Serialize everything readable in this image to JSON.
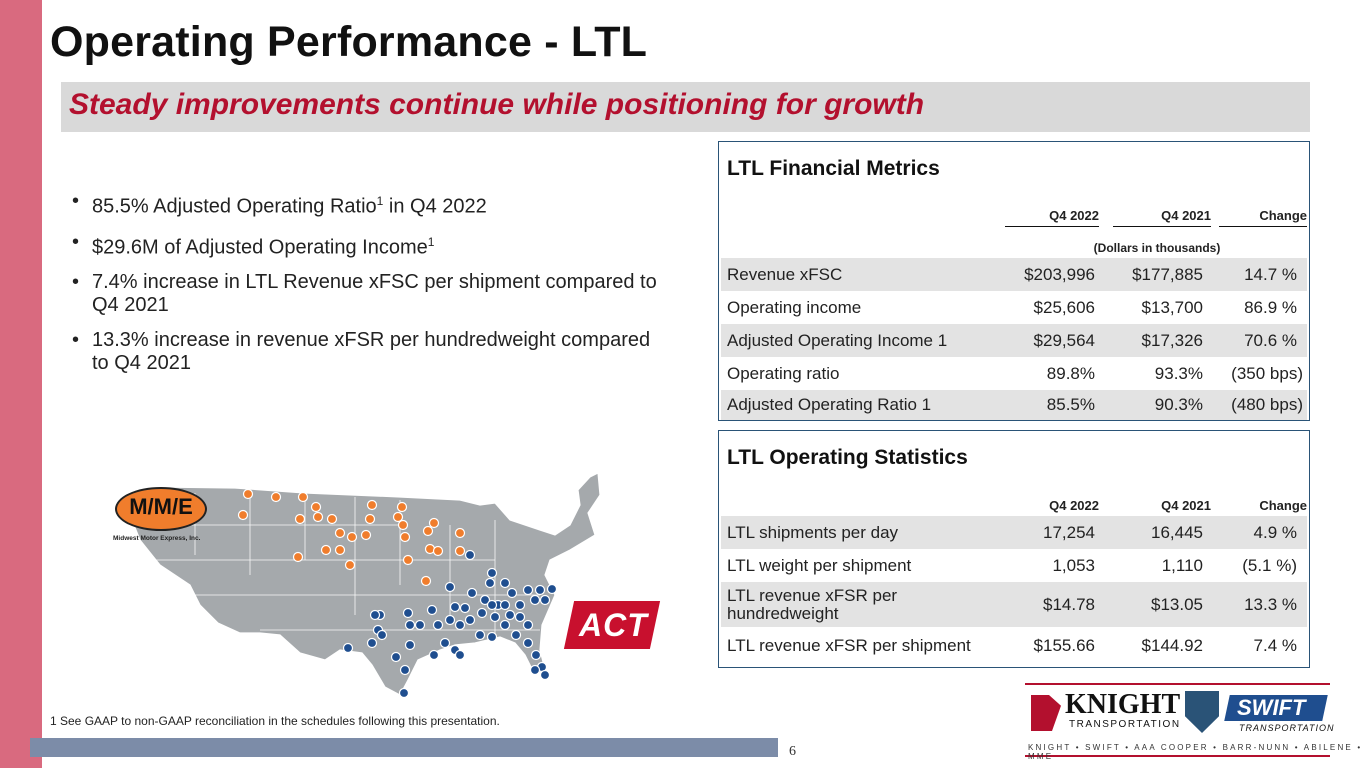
{
  "title": "Operating Performance - LTL",
  "subtitle": "Steady improvements continue while positioning for growth",
  "bullets": [
    {
      "text": "85.5% Adjusted Operating Ratio",
      "sup": "1",
      "tail": " in Q4 2022"
    },
    {
      "text": "$29.6M of Adjusted Operating Income",
      "sup": "1",
      "tail": ""
    },
    {
      "text": "7.4% increase in LTL Revenue xFSC per shipment compared to Q4 2021",
      "sup": "",
      "tail": ""
    },
    {
      "text": "13.3% increase in revenue xFSR per hundredweight compared to Q4 2021",
      "sup": "",
      "tail": ""
    }
  ],
  "financial": {
    "title": "LTL Financial Metrics",
    "col1": "Q4 2022",
    "col2": "Q4 2021",
    "col3": "Change",
    "units": "(Dollars in thousands)",
    "rows": [
      {
        "label": "Revenue xFSC",
        "v1": "$203,996",
        "v2": "$177,885",
        "v3": "14.7 %"
      },
      {
        "label": "Operating income",
        "v1": "$25,606",
        "v2": "$13,700",
        "v3": "86.9 %"
      },
      {
        "label": "Adjusted Operating Income 1",
        "v1": "$29,564",
        "v2": "$17,326",
        "v3": "70.6 %"
      },
      {
        "label": "Operating ratio",
        "v1": "89.8%",
        "v2": "93.3%",
        "v3": "(350 bps)"
      },
      {
        "label": "Adjusted Operating Ratio 1",
        "v1": "85.5%",
        "v2": "90.3%",
        "v3": "(480 bps)"
      }
    ]
  },
  "stats": {
    "title": "LTL Operating Statistics",
    "col1": "Q4 2022",
    "col2": "Q4 2021",
    "col3": "Change",
    "rows": [
      {
        "label": "LTL shipments per day",
        "v1": "17,254",
        "v2": "16,445",
        "v3": "4.9 %"
      },
      {
        "label": "LTL weight per shipment",
        "v1": "1,053",
        "v2": "1,110",
        "v3": "(5.1 %)"
      },
      {
        "label": "LTL revenue xFSR per hundredweight",
        "v1": "$14.78",
        "v2": "$13.05",
        "v3": "13.3 %"
      },
      {
        "label": "LTL revenue xFSR per shipment",
        "v1": "$155.66",
        "v2": "$144.92",
        "v3": "7.4 %"
      }
    ]
  },
  "map": {
    "mme_logo": "M/M/E",
    "mme_name": "Midwest Motor Express, Inc.",
    "act_logo": "ACT",
    "orange": "#f07d2c",
    "blue": "#1f4e8f"
  },
  "footnote": "1   See GAAP to non-GAAP reconciliation in the schedules following this presentation.",
  "page_number": "6",
  "brand": {
    "knight": "KNIGHT",
    "knight_sub": "TRANSPORTATION",
    "swift": "SWIFT",
    "swift_sub": "TRANSPORTATION",
    "family": "KNIGHT • SWIFT • AAA COOPER • BARR-NUNN • ABILENE • MME"
  }
}
